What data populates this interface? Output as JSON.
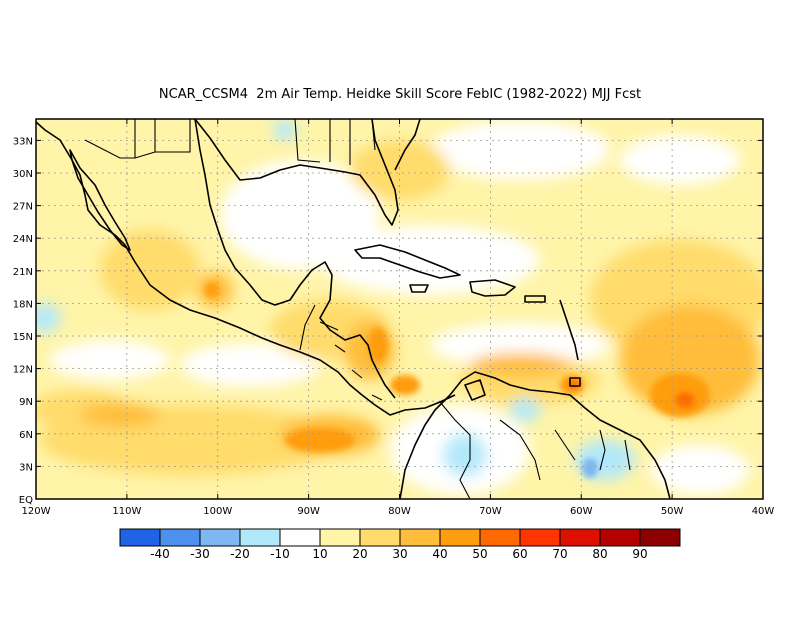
{
  "title": "NCAR_CCSM4  2m Air Temp. Heidke Skill Score FebIC (1982-2022) MJJ Fcst",
  "map": {
    "lat_labels": [
      "33N",
      "30N",
      "27N",
      "24N",
      "21N",
      "18N",
      "15N",
      "12N",
      "9N",
      "6N",
      "3N",
      "EQ"
    ],
    "lon_labels": [
      "120W",
      "110W",
      "100W",
      "90W",
      "80W",
      "70W",
      "60W",
      "50W",
      "40W"
    ],
    "lon_range": [
      -120,
      -40
    ],
    "lat_range": [
      0,
      35
    ],
    "grid": true,
    "skill_regions": [
      {
        "name": "eastern-atlantic-max",
        "lon": -49,
        "lat": 9,
        "value": 60
      },
      {
        "name": "eastern-atlantic-high",
        "lon": -52,
        "lat": 13,
        "value": 40
      },
      {
        "name": "lesser-antilles-max",
        "lon": -60.5,
        "lat": 11.5,
        "value": 60
      },
      {
        "name": "central-america-high",
        "lon": -82,
        "lat": 12,
        "value": 40
      },
      {
        "name": "eastern-pacific-high",
        "lon": -90,
        "lat": 6,
        "value": 40
      },
      {
        "name": "mexico-high",
        "lon": -100,
        "lat": 19,
        "value": 40
      },
      {
        "name": "guianas-negative",
        "lon": -58,
        "lat": 3,
        "value": -20
      },
      {
        "name": "amazon-negative",
        "lon": -72,
        "lat": 4,
        "value": -10
      }
    ]
  },
  "colorbar": {
    "colors": [
      "#1f64e6",
      "#4d90ee",
      "#7db8f2",
      "#b2e9fa",
      "#ffffff",
      "#fff4a8",
      "#ffdc6c",
      "#ffbd3b",
      "#ff9d10",
      "#ff6a00",
      "#ff3600",
      "#dd1000",
      "#b50000",
      "#8c0000"
    ],
    "labels": [
      "-40",
      "-30",
      "-20",
      "-10",
      "10",
      "20",
      "30",
      "40",
      "50",
      "60",
      "70",
      "80",
      "90"
    ]
  }
}
